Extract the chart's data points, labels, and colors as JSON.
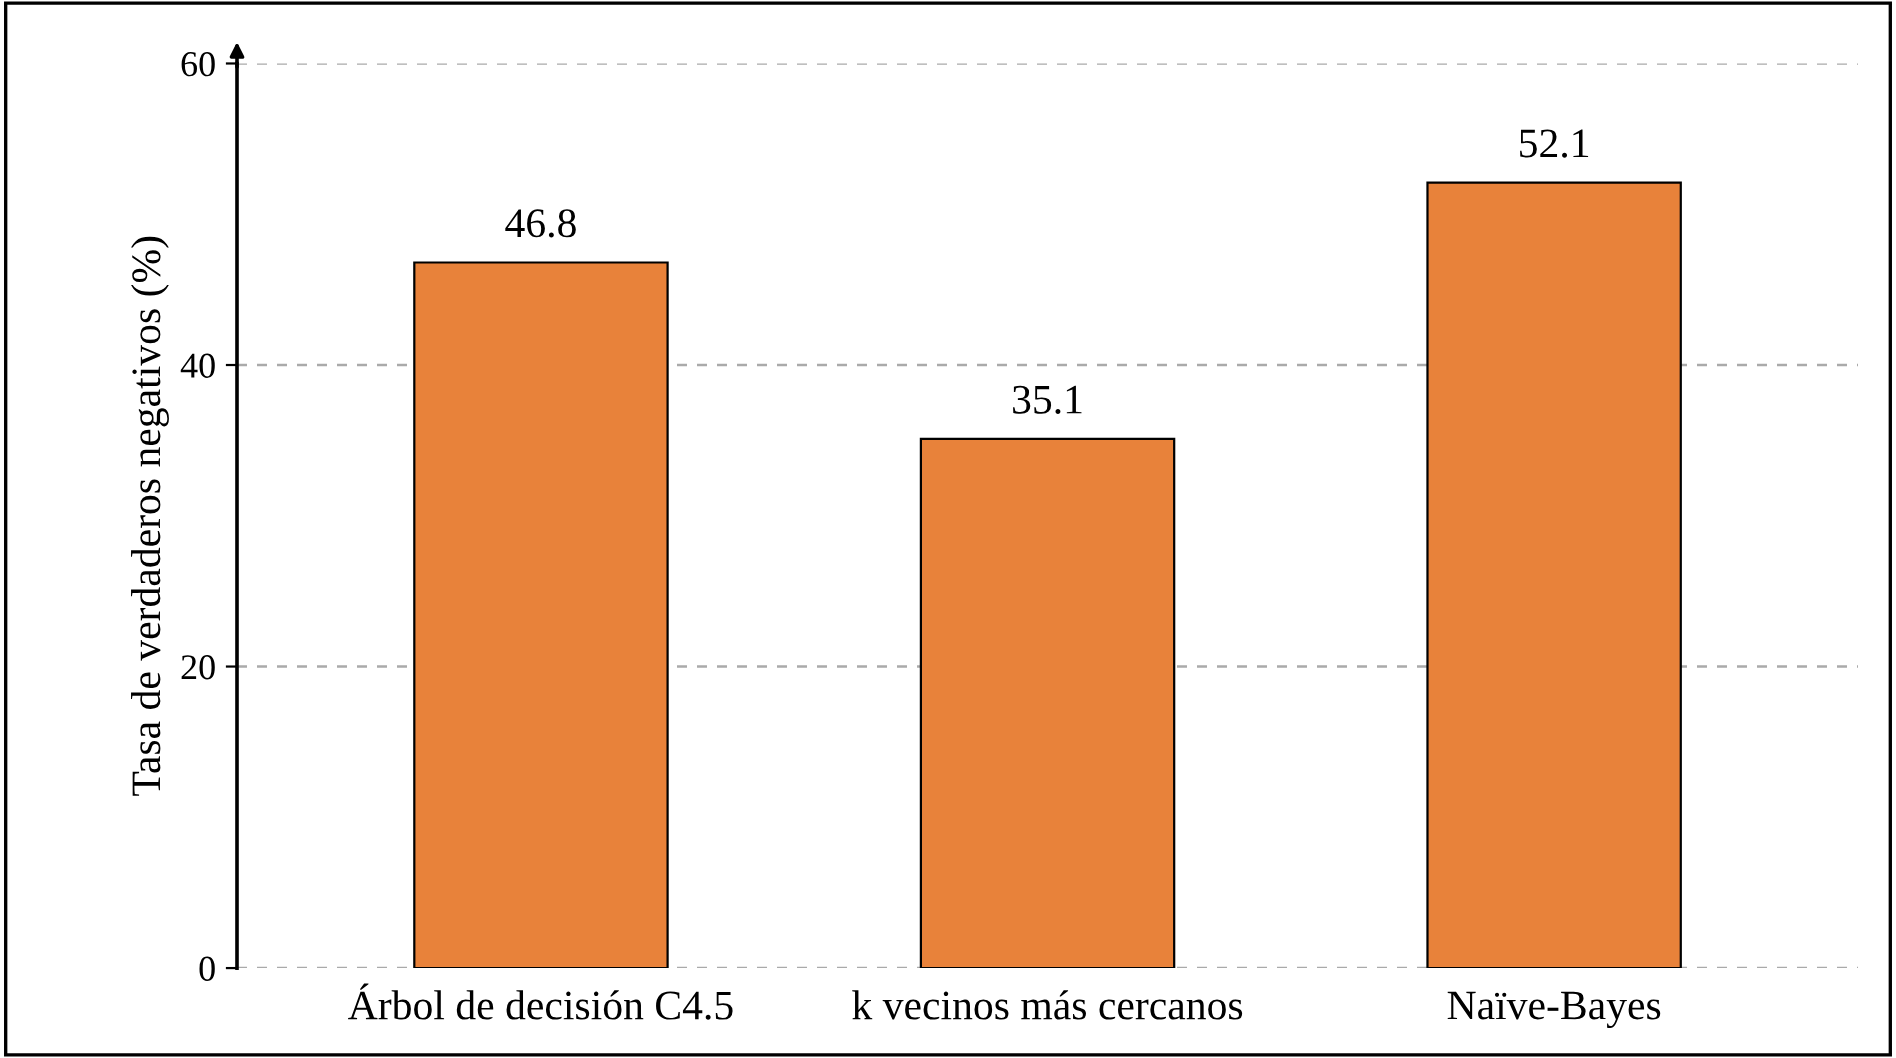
{
  "chart_data": {
    "type": "bar",
    "ylabel": "Tasa de verdaderos negativos (%)",
    "categories": [
      "Árbol de decisión C4.5",
      "k vecinos más cercanos",
      "Naïve-Bayes"
    ],
    "values": [
      46.8,
      35.1,
      52.1
    ],
    "color": "#e8823a",
    "ylim": [
      0,
      60
    ],
    "yticks": [
      0,
      20,
      40,
      60
    ],
    "grid": "y",
    "data_labels": true
  }
}
